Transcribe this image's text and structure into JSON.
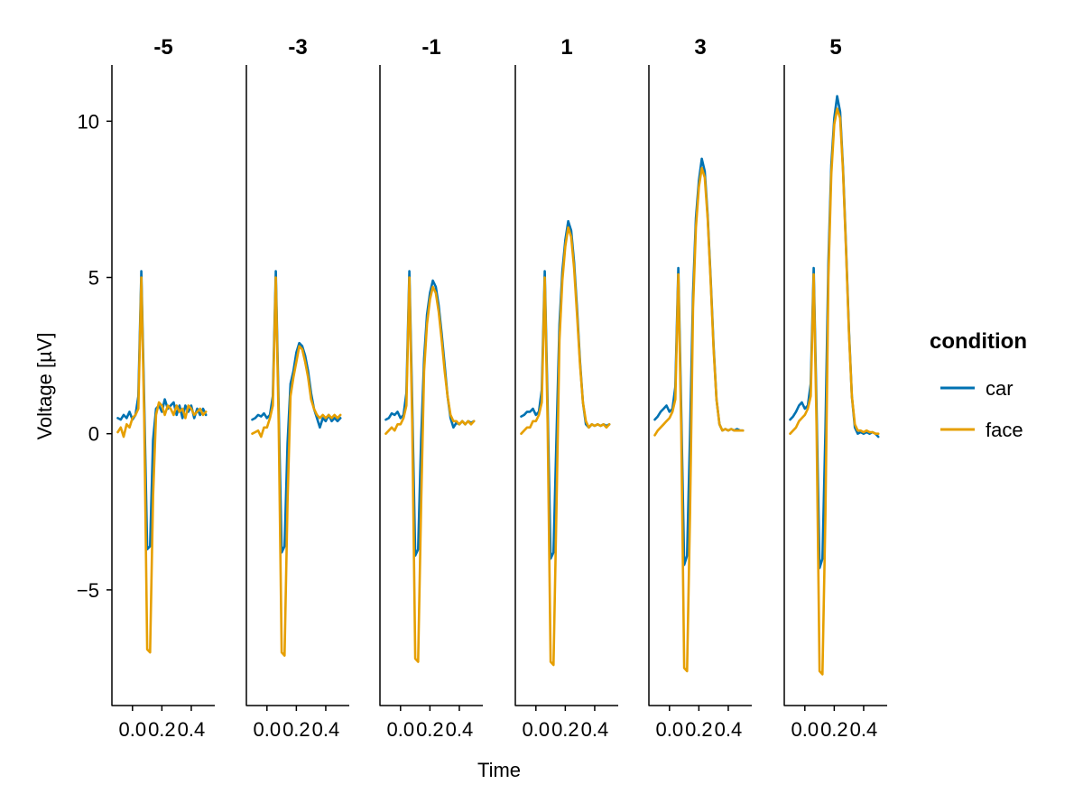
{
  "chart_data": {
    "type": "line",
    "title": "",
    "xlabel": "Time",
    "ylabel": "Voltage [µV]",
    "xlim": [
      -0.14,
      0.56
    ],
    "ylim": [
      -8.7,
      11.8
    ],
    "x_ticks": [
      0.0,
      0.2,
      0.4
    ],
    "x_tick_labels": [
      "0.0",
      "0.2",
      "0.4"
    ],
    "y_ticks": [
      -5,
      0,
      5,
      10
    ],
    "y_tick_labels": [
      "−5",
      "0",
      "5",
      "10"
    ],
    "grid": false,
    "legend": {
      "title": "condition",
      "position": "right",
      "entries": [
        {
          "label": "car",
          "color": "#0072b2"
        },
        {
          "label": "face",
          "color": "#e69f00"
        }
      ]
    },
    "x": [
      -0.1,
      -0.08,
      -0.06,
      -0.04,
      -0.02,
      0.0,
      0.02,
      0.04,
      0.06,
      0.08,
      0.1,
      0.12,
      0.14,
      0.16,
      0.18,
      0.2,
      0.22,
      0.24,
      0.26,
      0.28,
      0.3,
      0.32,
      0.34,
      0.36,
      0.38,
      0.4,
      0.42,
      0.44,
      0.46,
      0.48,
      0.5
    ],
    "panels": [
      {
        "label": "-5",
        "series": [
          {
            "name": "car",
            "values": [
              0.5,
              0.45,
              0.6,
              0.5,
              0.7,
              0.45,
              0.6,
              1.2,
              5.2,
              1.0,
              -3.7,
              -3.6,
              -0.2,
              0.8,
              0.9,
              0.7,
              1.1,
              0.8,
              0.9,
              1.0,
              0.6,
              0.9,
              0.5,
              0.9,
              0.7,
              0.9,
              0.5,
              0.8,
              0.6,
              0.8,
              0.6
            ]
          },
          {
            "name": "face",
            "values": [
              0.05,
              0.2,
              -0.1,
              0.3,
              0.2,
              0.5,
              0.6,
              0.8,
              5.0,
              0.5,
              -6.9,
              -7.0,
              -2.0,
              0.6,
              1.0,
              0.9,
              0.6,
              0.9,
              0.8,
              0.6,
              0.9,
              0.7,
              0.8,
              0.5,
              0.9,
              0.8,
              0.6,
              0.7,
              0.8,
              0.6,
              0.7
            ]
          }
        ]
      },
      {
        "label": "-3",
        "series": [
          {
            "name": "car",
            "values": [
              0.45,
              0.5,
              0.6,
              0.55,
              0.65,
              0.5,
              0.6,
              1.2,
              5.2,
              0.8,
              -3.8,
              -3.6,
              -0.3,
              1.6,
              2.0,
              2.6,
              2.9,
              2.8,
              2.5,
              2.0,
              1.3,
              0.8,
              0.5,
              0.2,
              0.5,
              0.4,
              0.6,
              0.4,
              0.5,
              0.4,
              0.5
            ]
          },
          {
            "name": "face",
            "values": [
              0.0,
              0.05,
              0.1,
              -0.1,
              0.2,
              0.2,
              0.5,
              0.9,
              5.0,
              0.3,
              -7.0,
              -7.1,
              -2.2,
              1.2,
              1.8,
              2.3,
              2.8,
              2.7,
              2.3,
              1.8,
              1.1,
              0.8,
              0.6,
              0.5,
              0.6,
              0.5,
              0.6,
              0.5,
              0.6,
              0.5,
              0.6
            ]
          }
        ]
      },
      {
        "label": "-1",
        "series": [
          {
            "name": "car",
            "values": [
              0.45,
              0.5,
              0.65,
              0.6,
              0.7,
              0.5,
              0.6,
              1.3,
              5.2,
              0.9,
              -3.9,
              -3.7,
              -0.2,
              2.4,
              3.8,
              4.5,
              4.9,
              4.7,
              4.1,
              3.2,
              2.2,
              1.2,
              0.5,
              0.2,
              0.35,
              0.3,
              0.4,
              0.3,
              0.4,
              0.35,
              0.4
            ]
          },
          {
            "name": "face",
            "values": [
              0.0,
              0.1,
              0.2,
              0.1,
              0.3,
              0.3,
              0.5,
              0.9,
              5.0,
              0.3,
              -7.2,
              -7.3,
              -2.3,
              2.0,
              3.5,
              4.3,
              4.7,
              4.5,
              3.9,
              3.0,
              2.0,
              1.2,
              0.6,
              0.4,
              0.4,
              0.3,
              0.4,
              0.3,
              0.4,
              0.3,
              0.4
            ]
          }
        ]
      },
      {
        "label": "1",
        "series": [
          {
            "name": "car",
            "values": [
              0.55,
              0.6,
              0.7,
              0.7,
              0.8,
              0.6,
              0.7,
              1.4,
              5.2,
              0.9,
              -4.0,
              -3.8,
              -0.1,
              3.5,
              5.2,
              6.2,
              6.8,
              6.5,
              5.5,
              4.0,
              2.3,
              1.0,
              0.3,
              0.2,
              0.3,
              0.25,
              0.3,
              0.25,
              0.3,
              0.25,
              0.3
            ]
          },
          {
            "name": "face",
            "values": [
              0.0,
              0.1,
              0.2,
              0.2,
              0.4,
              0.4,
              0.6,
              1.0,
              5.0,
              0.3,
              -7.3,
              -7.4,
              -2.4,
              3.0,
              4.9,
              6.0,
              6.6,
              6.3,
              5.3,
              3.8,
              2.2,
              1.0,
              0.4,
              0.2,
              0.3,
              0.25,
              0.3,
              0.25,
              0.3,
              0.2,
              0.3
            ]
          }
        ]
      },
      {
        "label": "3",
        "series": [
          {
            "name": "car",
            "values": [
              0.45,
              0.55,
              0.7,
              0.8,
              0.9,
              0.7,
              0.8,
              1.5,
              5.3,
              0.8,
              -4.2,
              -3.9,
              0.0,
              4.5,
              6.9,
              8.1,
              8.8,
              8.4,
              7.0,
              5.0,
              2.8,
              1.1,
              0.3,
              0.1,
              0.15,
              0.1,
              0.15,
              0.1,
              0.15,
              0.1,
              0.1
            ]
          },
          {
            "name": "face",
            "values": [
              -0.05,
              0.1,
              0.2,
              0.3,
              0.4,
              0.5,
              0.7,
              1.1,
              5.1,
              0.2,
              -7.5,
              -7.6,
              -2.5,
              4.0,
              6.6,
              7.9,
              8.5,
              8.2,
              6.9,
              4.9,
              2.7,
              1.1,
              0.3,
              0.1,
              0.15,
              0.1,
              0.15,
              0.1,
              0.1,
              0.1,
              0.1
            ]
          }
        ]
      },
      {
        "label": "5",
        "series": [
          {
            "name": "car",
            "values": [
              0.45,
              0.55,
              0.7,
              0.9,
              1.0,
              0.8,
              0.9,
              1.6,
              5.3,
              0.8,
              -4.3,
              -4.0,
              0.1,
              5.5,
              8.6,
              10.1,
              10.8,
              10.3,
              8.5,
              6.0,
              3.3,
              1.2,
              0.2,
              0.0,
              0.05,
              0.0,
              0.05,
              0.0,
              0.05,
              0.0,
              -0.1
            ]
          },
          {
            "name": "face",
            "values": [
              0.0,
              0.1,
              0.2,
              0.4,
              0.5,
              0.6,
              0.8,
              1.2,
              5.1,
              0.2,
              -7.6,
              -7.7,
              -2.6,
              5.0,
              8.3,
              9.9,
              10.4,
              10.1,
              8.4,
              5.9,
              3.2,
              1.2,
              0.3,
              0.1,
              0.1,
              0.05,
              0.1,
              0.05,
              0.05,
              0.0,
              0.0
            ]
          }
        ]
      }
    ]
  }
}
